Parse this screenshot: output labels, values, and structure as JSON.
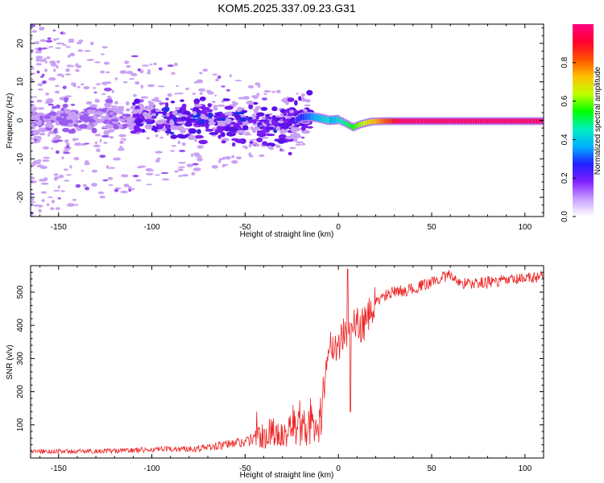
{
  "title": "KOM5.2025.337.09.23.G31",
  "chart_data": [
    {
      "type": "heatmap",
      "name": "spectrogram",
      "title": "KOM5.2025.337.09.23.G31",
      "xlabel": "Height of straight line (km)",
      "ylabel": "Frequency (Hz)",
      "xlim": [
        -165,
        110
      ],
      "ylim": [
        -25,
        25
      ],
      "xticks": [
        -150,
        -100,
        -50,
        0,
        50,
        100
      ],
      "yticks": [
        20,
        10,
        0,
        -10,
        -20
      ],
      "xtick_labels": [
        "-150",
        "-100",
        "-50",
        "0",
        "50",
        "100"
      ],
      "ytick_labels": [
        "20",
        "10",
        "0",
        "-10",
        "-20"
      ],
      "ridge": [
        {
          "x": -165,
          "y": 0.5
        },
        {
          "x": -150,
          "y": 0.5
        },
        {
          "x": -120,
          "y": 0.8
        },
        {
          "x": -100,
          "y": 0.5
        },
        {
          "x": -70,
          "y": 0.2
        },
        {
          "x": -50,
          "y": -0.5
        },
        {
          "x": -35,
          "y": -1.5
        },
        {
          "x": -25,
          "y": -1.0
        },
        {
          "x": -20,
          "y": 0.8
        },
        {
          "x": -15,
          "y": 1.0
        },
        {
          "x": -10,
          "y": 0.6
        },
        {
          "x": -5,
          "y": 0.0
        },
        {
          "x": 0,
          "y": 0.2
        },
        {
          "x": 5,
          "y": -1.0
        },
        {
          "x": 8,
          "y": -1.8
        },
        {
          "x": 12,
          "y": -1.0
        },
        {
          "x": 18,
          "y": -0.3
        },
        {
          "x": 25,
          "y": -0.2
        },
        {
          "x": 110,
          "y": -0.2
        }
      ],
      "colorbar": {
        "label": "Normalized spectral amplitude",
        "range": [
          0,
          1
        ],
        "ticks": [
          0.0,
          0.2,
          0.4,
          0.6,
          0.8
        ],
        "tick_labels": [
          "0.0",
          "0.2",
          "0.4",
          "0.6",
          "0.8"
        ],
        "colors": [
          "#ffffff",
          "#c8a0ff",
          "#8020ff",
          "#2020ff",
          "#00b0ff",
          "#00f0c0",
          "#00ff00",
          "#c0ff00",
          "#ffc000",
          "#ff5000",
          "#ff0030",
          "#ff0080"
        ]
      }
    },
    {
      "type": "line",
      "name": "snr",
      "title": "",
      "xlabel": "Height of straight line (km)",
      "ylabel": "SNR (v/v)",
      "xlim": [
        -165,
        110
      ],
      "ylim": [
        0,
        580
      ],
      "xticks": [
        -150,
        -100,
        -50,
        0,
        50,
        100
      ],
      "yticks": [
        100,
        200,
        300,
        400,
        500
      ],
      "xtick_labels": [
        "-150",
        "-100",
        "-50",
        "0",
        "50",
        "100"
      ],
      "ytick_labels": [
        "100",
        "200",
        "300",
        "400",
        "500"
      ],
      "line_color": "#ee2222",
      "series": [
        {
          "name": "SNR",
          "points": [
            {
              "x": -165,
              "y": 20
            },
            {
              "x": -140,
              "y": 20
            },
            {
              "x": -120,
              "y": 22
            },
            {
              "x": -100,
              "y": 25
            },
            {
              "x": -80,
              "y": 28
            },
            {
              "x": -70,
              "y": 32
            },
            {
              "x": -60,
              "y": 40
            },
            {
              "x": -50,
              "y": 50
            },
            {
              "x": -40,
              "y": 65
            },
            {
              "x": -30,
              "y": 85
            },
            {
              "x": -20,
              "y": 90
            },
            {
              "x": -10,
              "y": 95
            },
            {
              "x": -8,
              "y": 200
            },
            {
              "x": -6,
              "y": 330
            },
            {
              "x": -4,
              "y": 340
            },
            {
              "x": 0,
              "y": 345
            },
            {
              "x": 5,
              "y": 390
            },
            {
              "x": 10,
              "y": 400
            },
            {
              "x": 15,
              "y": 410
            },
            {
              "x": 20,
              "y": 470
            },
            {
              "x": 25,
              "y": 490
            },
            {
              "x": 30,
              "y": 500
            },
            {
              "x": 40,
              "y": 510
            },
            {
              "x": 50,
              "y": 530
            },
            {
              "x": 55,
              "y": 545
            },
            {
              "x": 60,
              "y": 550
            },
            {
              "x": 65,
              "y": 530
            },
            {
              "x": 70,
              "y": 525
            },
            {
              "x": 80,
              "y": 530
            },
            {
              "x": 90,
              "y": 535
            },
            {
              "x": 100,
              "y": 540
            },
            {
              "x": 110,
              "y": 550
            }
          ]
        }
      ]
    }
  ]
}
